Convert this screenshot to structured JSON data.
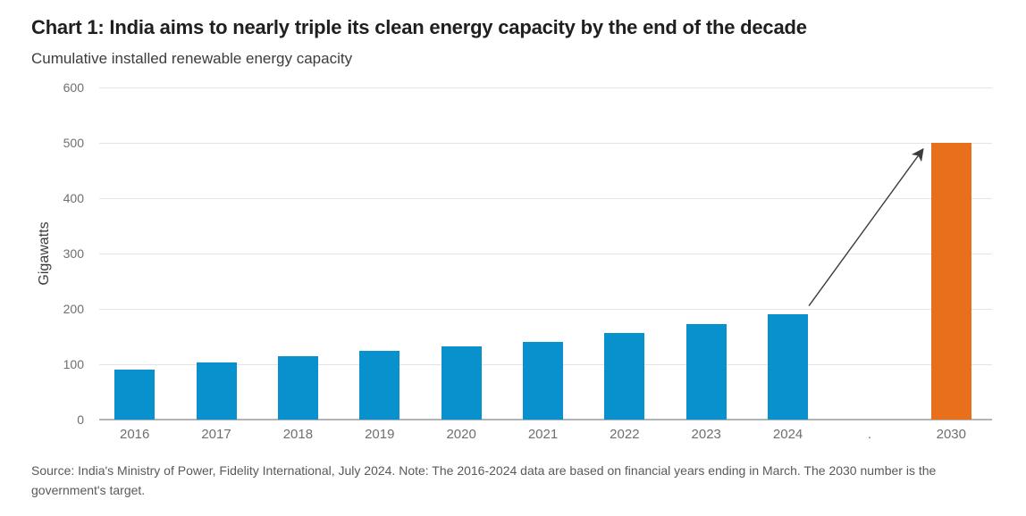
{
  "page": {
    "background": "#ffffff"
  },
  "chart_data": {
    "type": "bar",
    "title": "Chart 1: India aims to nearly triple its clean energy capacity by the end of the decade",
    "subtitle": "Cumulative installed renewable energy capacity",
    "ylabel": "Gigawatts",
    "xlabel": "",
    "ylim": [
      0,
      600
    ],
    "yticks": [
      0,
      100,
      200,
      300,
      400,
      500,
      600
    ],
    "categories": [
      "2016",
      "2017",
      "2018",
      "2019",
      "2020",
      "2021",
      "2022",
      "2023",
      "2024",
      ".",
      "2030"
    ],
    "values": [
      90,
      103,
      115,
      124,
      132,
      141,
      156,
      172,
      191,
      null,
      500
    ],
    "grid": "horizontal",
    "legend": "none",
    "bar_color_default": "#0891CD",
    "bar_color_target": "#E8701D",
    "target_category": "2030",
    "gridline_color": "#e3e4e6",
    "axis_line_color": "#b1b4b8",
    "tick_label_color": "#6f6f6f",
    "annotation": {
      "type": "arrow",
      "from_category": "2024",
      "to_category": "2030",
      "color": "#3c3c3c"
    },
    "source_note": "Source: India's Ministry of Power, Fidelity International, July 2024. Note: The 2016-2024 data are based on financial years ending in March. The 2030 number is the government's target."
  }
}
